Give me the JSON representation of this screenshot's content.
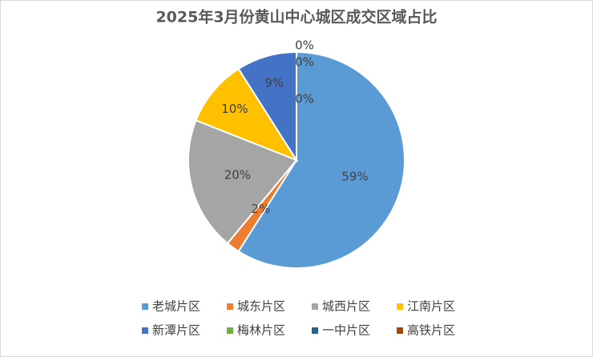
{
  "chart_data": {
    "type": "pie",
    "title": "2025年3月份黄山中心城区成交区域占比",
    "categories": [
      "老城片区",
      "城东片区",
      "城西片区",
      "江南片区",
      "新潭片区",
      "梅林片区",
      "一中片区",
      "高铁片区"
    ],
    "values": [
      59,
      2,
      20,
      10,
      9,
      0,
      0,
      0
    ],
    "value_labels": [
      "59%",
      "2%",
      "20%",
      "10%",
      "9%",
      "0%",
      "0%",
      "0%"
    ],
    "colors": [
      "#5b9bd5",
      "#ed7d31",
      "#a5a5a5",
      "#ffc000",
      "#4472c4",
      "#70ad47",
      "#255e91",
      "#9e480e"
    ],
    "legend": "bottom"
  }
}
